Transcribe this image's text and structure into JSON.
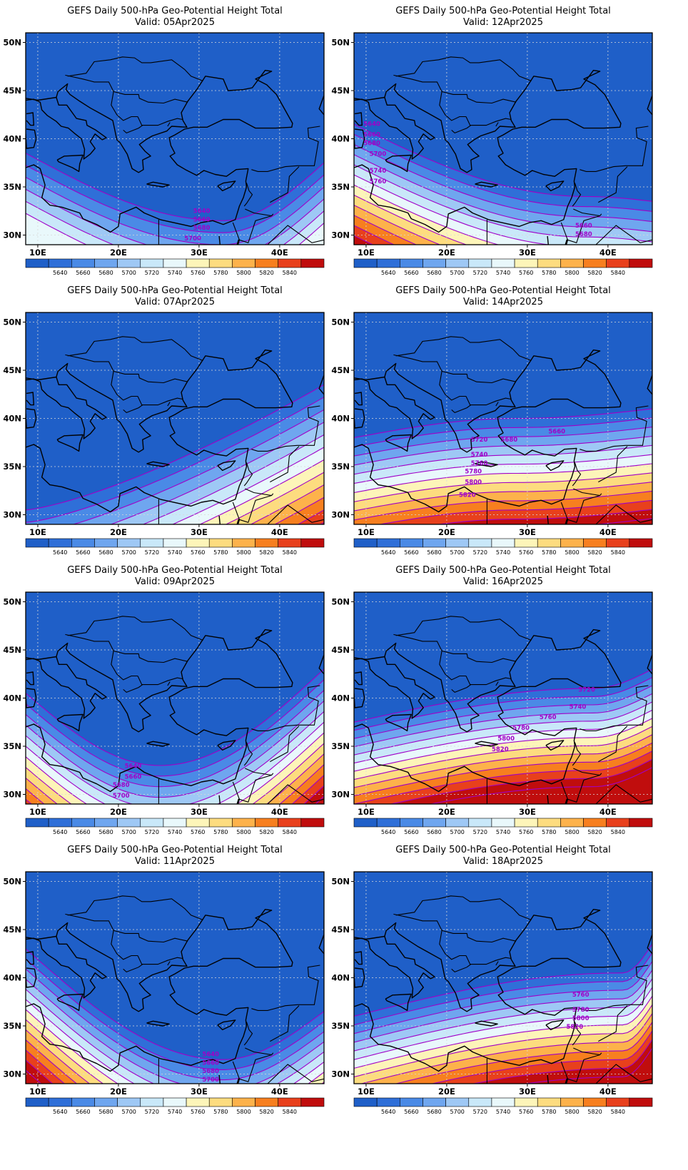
{
  "figure": {
    "title": "GEFS Daily 500-hPa Geo-Potential Height Total",
    "lat_ticks": [
      "50N",
      "45N",
      "40N",
      "35N",
      "30N"
    ],
    "lon_ticks": [
      "10E",
      "20E",
      "30E",
      "40E"
    ],
    "colorbar": {
      "labels": [
        "5640",
        "5660",
        "5680",
        "5700",
        "5720",
        "5740",
        "5760",
        "5780",
        "5800",
        "5820",
        "5840"
      ],
      "colors": [
        "#1f5fc8",
        "#2f6fd8",
        "#4a8ae6",
        "#6fa6ef",
        "#9ec8f5",
        "#c9e8f9",
        "#e9f8fb",
        "#fdf5b9",
        "#fddc7f",
        "#fdb24b",
        "#f77f1f",
        "#e8401c",
        "#c00d0d"
      ]
    },
    "contour_color": "#a000c8"
  },
  "panels": [
    {
      "valid": "Valid: 05Apr2025",
      "contour_labels": [
        {
          "text": "5640"
        },
        {
          "text": "5660"
        },
        {
          "text": "5680"
        },
        {
          "text": "5700"
        }
      ]
    },
    {
      "valid": "Valid: 12Apr2025",
      "contour_labels": [
        {
          "text": "5640"
        },
        {
          "text": "5660"
        },
        {
          "text": "5680"
        },
        {
          "text": "5700"
        },
        {
          "text": "5740"
        },
        {
          "text": "5760"
        },
        {
          "text": "5660"
        },
        {
          "text": "5680"
        }
      ]
    },
    {
      "valid": "Valid: 07Apr2025",
      "contour_labels": []
    },
    {
      "valid": "Valid: 14Apr2025",
      "contour_labels": [
        {
          "text": "5660"
        },
        {
          "text": "5680"
        },
        {
          "text": "5720"
        },
        {
          "text": "5740"
        },
        {
          "text": "5760"
        },
        {
          "text": "5780"
        },
        {
          "text": "5800"
        },
        {
          "text": "5820"
        }
      ]
    },
    {
      "valid": "Valid: 09Apr2025",
      "contour_labels": [
        {
          "text": "5640"
        },
        {
          "text": "5660"
        },
        {
          "text": "5680"
        },
        {
          "text": "5700"
        }
      ]
    },
    {
      "valid": "Valid: 16Apr2025",
      "contour_labels": [
        {
          "text": "5720"
        },
        {
          "text": "5740"
        },
        {
          "text": "5760"
        },
        {
          "text": "5780"
        },
        {
          "text": "5800"
        },
        {
          "text": "5820"
        }
      ]
    },
    {
      "valid": "Valid: 11Apr2025",
      "contour_labels": [
        {
          "text": "5640"
        },
        {
          "text": "5660"
        },
        {
          "text": "5680"
        },
        {
          "text": "5700"
        }
      ]
    },
    {
      "valid": "Valid: 18Apr2025",
      "contour_labels": [
        {
          "text": "5760"
        },
        {
          "text": "5780"
        },
        {
          "text": "5800"
        },
        {
          "text": "5820"
        }
      ]
    }
  ]
}
